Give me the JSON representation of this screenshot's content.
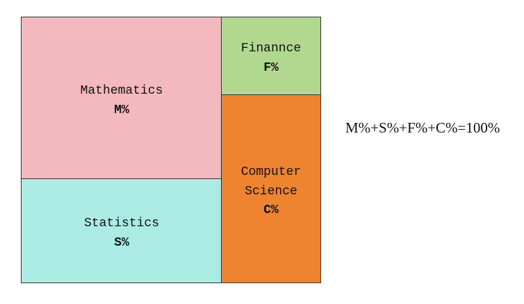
{
  "nodes": [
    {
      "lines": [
        "Mathematics"
      ],
      "symbol": "M%"
    },
    {
      "lines": [
        "Statistics"
      ],
      "symbol": "S%"
    },
    {
      "lines": [
        "Finannce"
      ],
      "symbol": "F%"
    },
    {
      "lines": [
        "Computer",
        "Science"
      ],
      "symbol": "C%"
    }
  ],
  "equation": "M%+S%+F%+C%=100%"
}
